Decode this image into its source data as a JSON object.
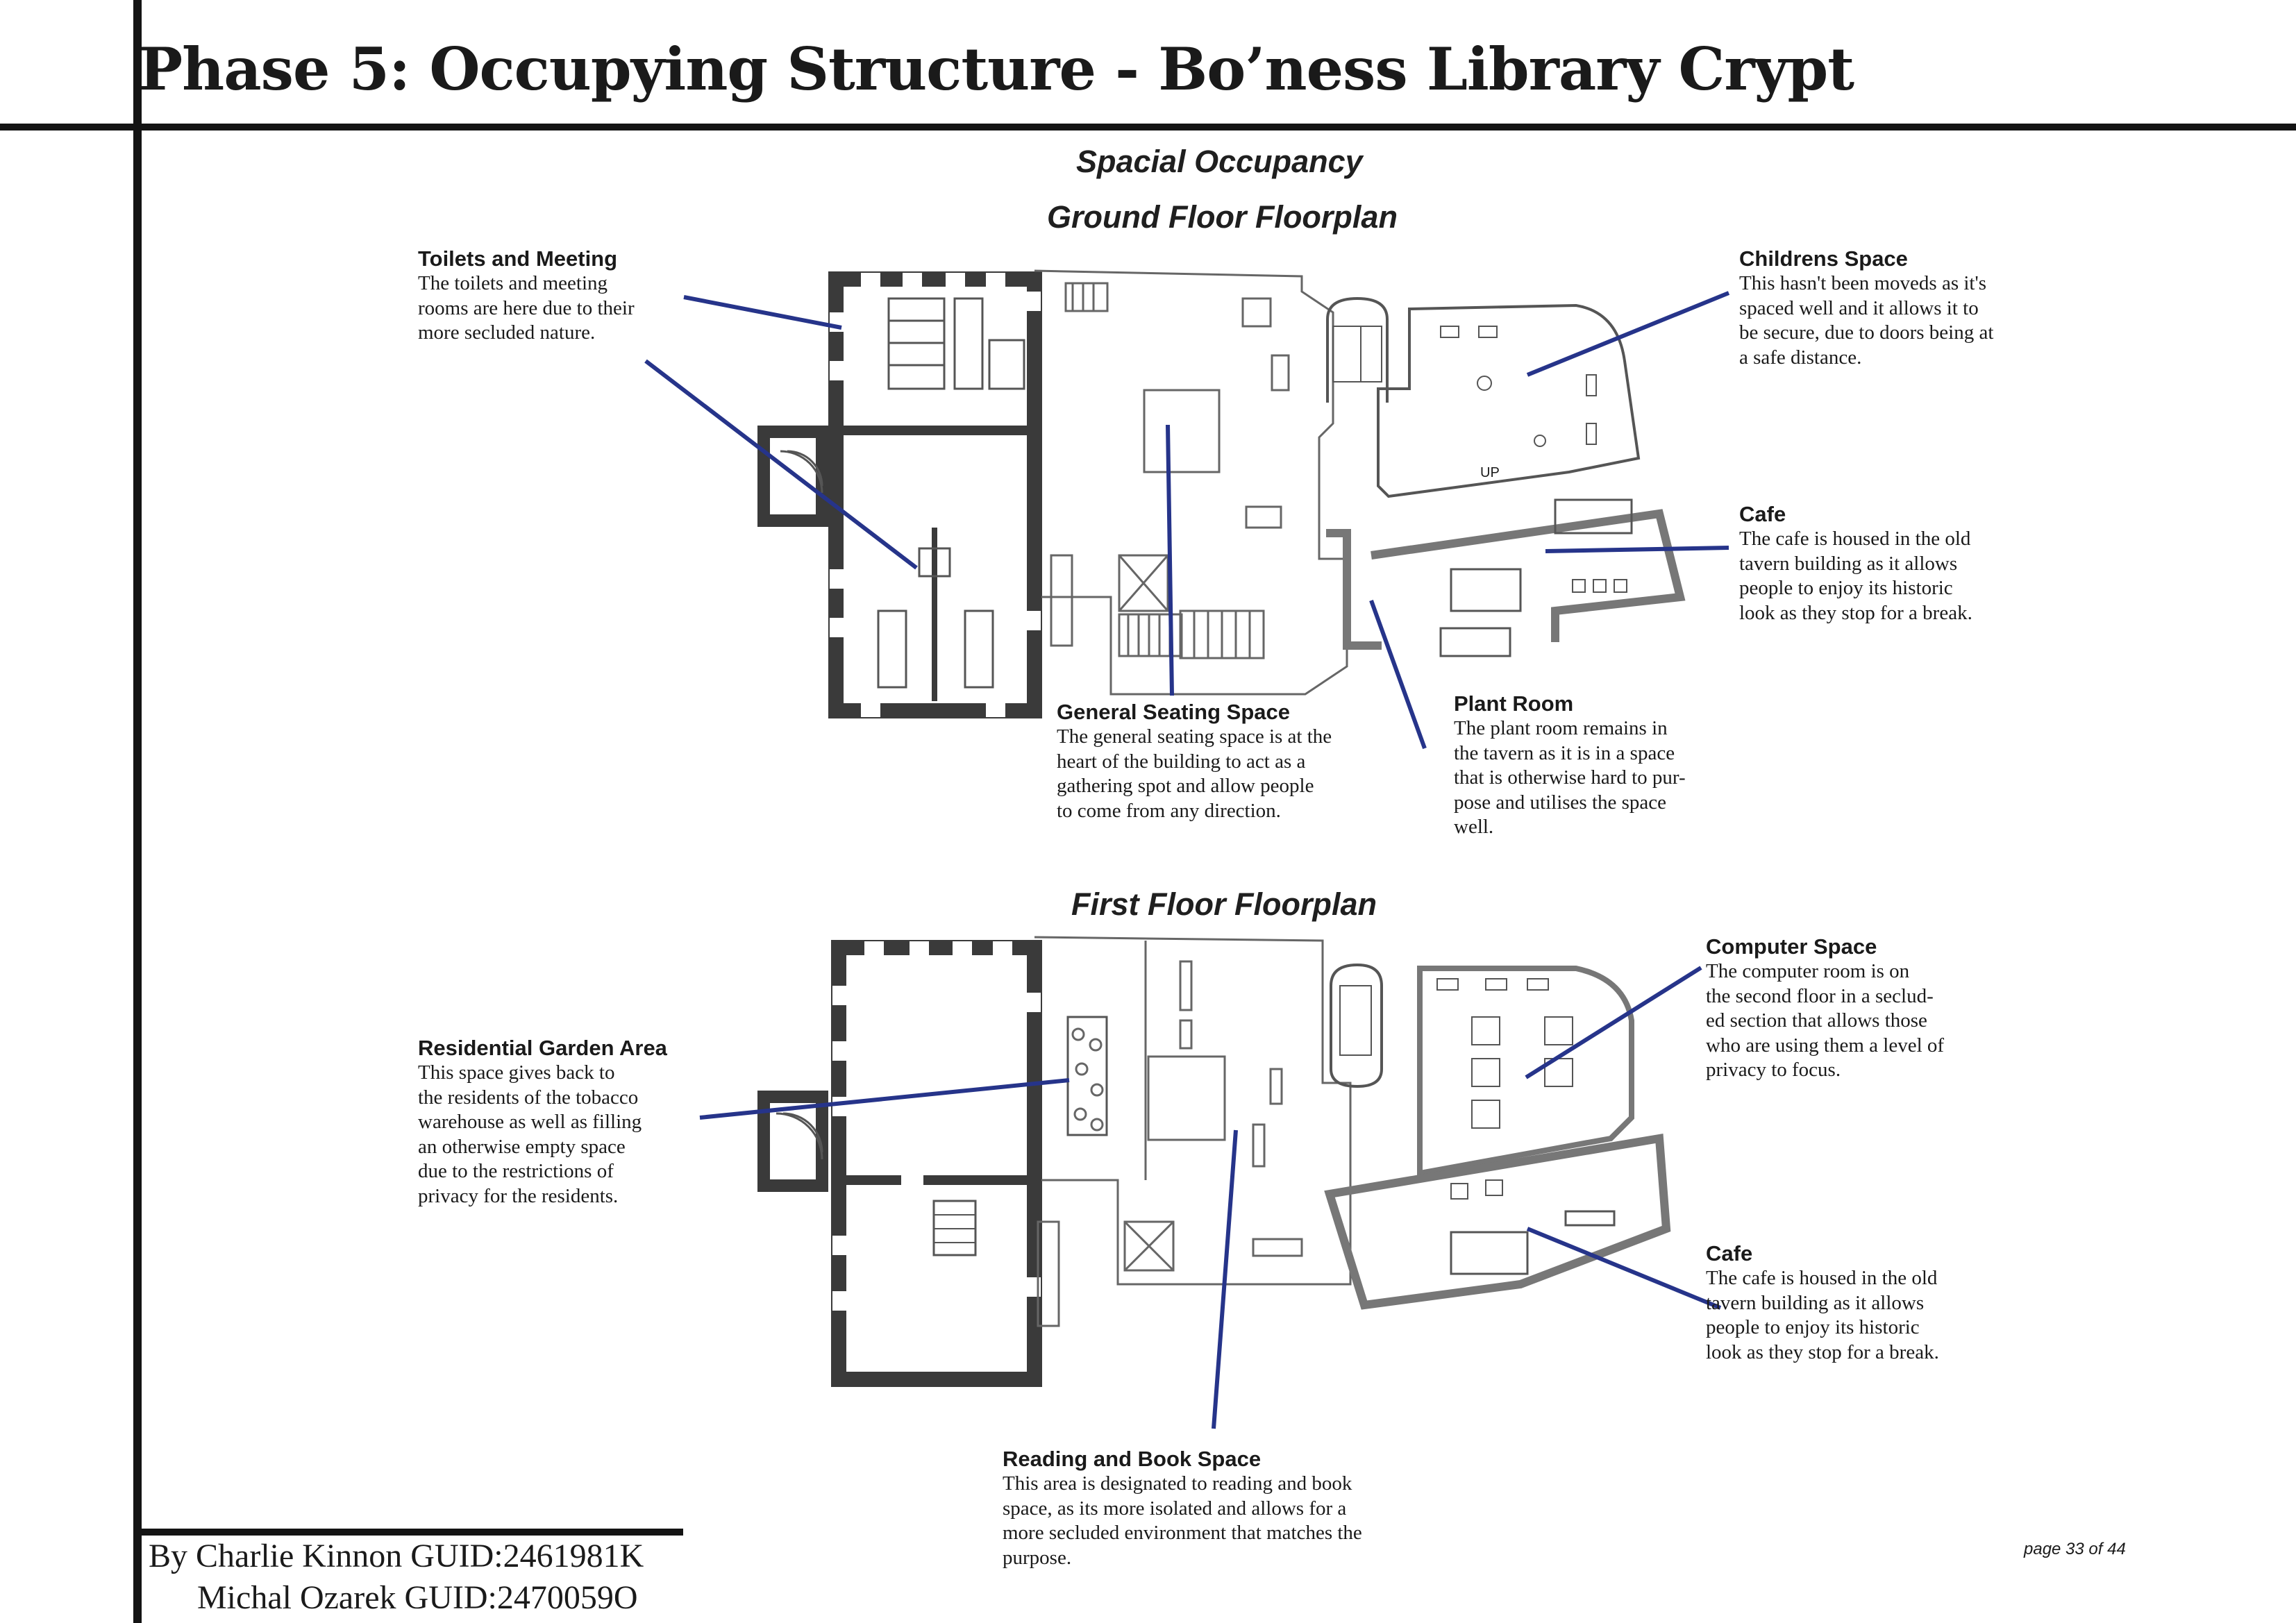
{
  "page_title": "Phase 5: Occupying Structure - Bo’ness Library Crypt",
  "headings": {
    "section": "Spacial Occupancy",
    "ground_floor": "Ground Floor Floorplan",
    "first_floor": "First Floor Floorplan"
  },
  "plan_labels": {
    "up": "UP"
  },
  "ground_annotations": {
    "toilets": {
      "title": "Toilets and Meeting",
      "body": [
        "The toilets and meeting",
        "rooms are here due to their",
        "more secluded nature."
      ]
    },
    "childrens": {
      "title": "Childrens Space",
      "body": [
        "This hasn't been moveds as it's",
        "spaced well and it allows it to",
        "be secure, due to doors being at",
        "a safe distance."
      ]
    },
    "cafe": {
      "title": "Cafe",
      "body": [
        "The cafe is housed in the old",
        "tavern building as it allows",
        "people to enjoy its historic",
        "look as they stop for a break."
      ]
    },
    "general_seating": {
      "title": "General Seating Space",
      "body": [
        "The general seating space is at the",
        "heart of the building to act as a",
        "gathering spot and allow people",
        "to come from any direction."
      ]
    },
    "plant_room": {
      "title": "Plant Room",
      "body": [
        "The plant room remains in",
        "the tavern as it is in a space",
        "that is otherwise hard to pur-",
        "pose and utilises the space",
        "well."
      ]
    }
  },
  "first_annotations": {
    "residential_garden": {
      "title": "Residential Garden Area",
      "body": [
        "This space gives back to",
        "the residents of the tobacco",
        "warehouse as well as filling",
        "an otherwise empty space",
        "due to the restrictions of",
        "privacy for the residents."
      ]
    },
    "computer": {
      "title": "Computer Space",
      "body": [
        "The computer room is on",
        "the second floor in a seclud-",
        "ed section that allows those",
        "who are using them a level of",
        "privacy to focus."
      ]
    },
    "cafe": {
      "title": "Cafe",
      "body": [
        "The cafe is housed in the old",
        "tavern building as it allows",
        "people to enjoy its historic",
        "look as they stop for a break."
      ]
    },
    "reading": {
      "title": "Reading and Book Space",
      "body": [
        "This area is designated to reading and book",
        "space, as its more isolated and allows for a",
        "more secluded environment that matches the",
        "purpose."
      ]
    }
  },
  "credits": {
    "line1": "By Charlie Kinnon GUID:2461981K",
    "line2": "Michal Ozarek GUID:2470059O"
  },
  "page_number": "page  33  of  44",
  "colors": {
    "leader_line": "#26348a",
    "wall_dark": "#3a3a3a",
    "wall_light": "#888888",
    "frame": "#141414"
  }
}
